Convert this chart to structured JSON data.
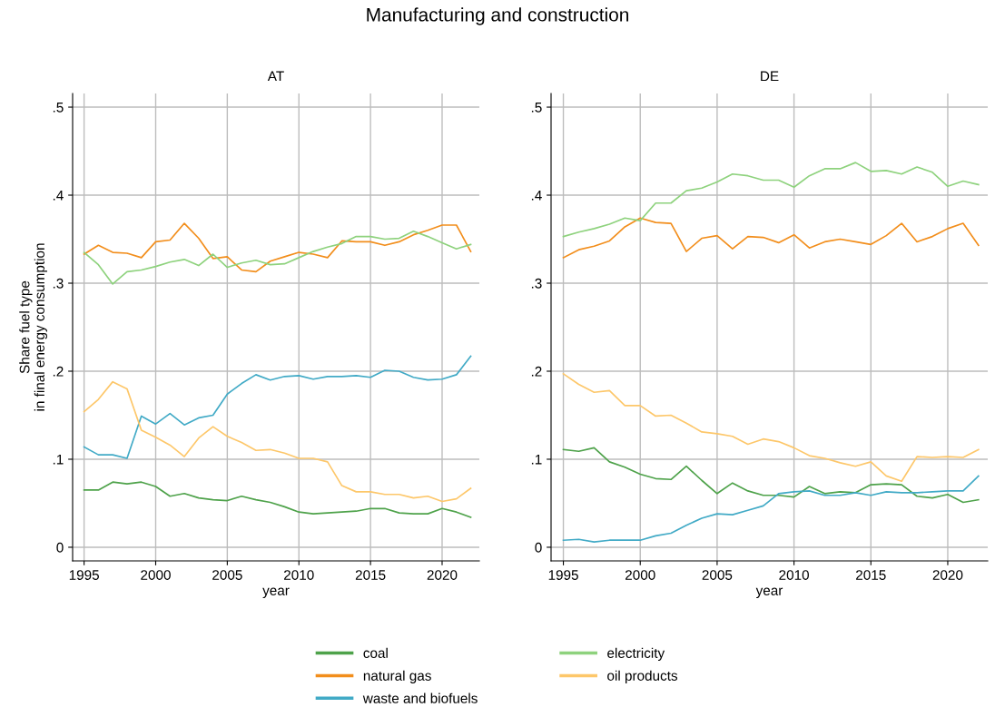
{
  "chart_data": [
    {
      "type": "line",
      "title": "Manufacturing and construction",
      "subtitle": "AT",
      "xlabel": "year",
      "ylabel": "Share fuel type\nin final energy consumption",
      "grid": true,
      "legend": "bottom",
      "x": [
        1995,
        1996,
        1997,
        1998,
        1999,
        2000,
        2001,
        2002,
        2003,
        2004,
        2005,
        2006,
        2007,
        2008,
        2009,
        2010,
        2011,
        2012,
        2013,
        2014,
        2015,
        2016,
        2017,
        2018,
        2019,
        2020,
        2021,
        2022
      ],
      "xlim": [
        1994.2,
        2022.6
      ],
      "xticks": [
        1995,
        2000,
        2005,
        2010,
        2015,
        2020
      ],
      "ylim": [
        -0.0155,
        0.5155
      ],
      "yticks": [
        {
          "value": 0,
          "label": "0"
        },
        {
          "value": 0.1,
          "label": ".1"
        },
        {
          "value": 0.2,
          "label": ".2"
        },
        {
          "value": 0.3,
          "label": ".3"
        },
        {
          "value": 0.4,
          "label": ".4"
        },
        {
          "value": 0.5,
          "label": ".5"
        }
      ],
      "series": [
        {
          "name": "coal",
          "color": "#4ea24a",
          "values": [
            0.065,
            0.065,
            0.074,
            0.072,
            0.074,
            0.069,
            0.058,
            0.061,
            0.056,
            0.054,
            0.053,
            0.058,
            0.054,
            0.051,
            0.046,
            0.04,
            0.038,
            0.039,
            0.04,
            0.041,
            0.044,
            0.044,
            0.039,
            0.038,
            0.038,
            0.044,
            0.04,
            0.034
          ]
        },
        {
          "name": "natural gas",
          "color": "#f28e1c",
          "values": [
            0.333,
            0.343,
            0.335,
            0.334,
            0.329,
            0.347,
            0.349,
            0.368,
            0.351,
            0.328,
            0.33,
            0.315,
            0.313,
            0.325,
            0.33,
            0.335,
            0.333,
            0.329,
            0.348,
            0.347,
            0.347,
            0.343,
            0.347,
            0.355,
            0.36,
            0.366,
            0.366,
            0.336
          ]
        },
        {
          "name": "waste and biofuels",
          "color": "#41aac6",
          "values": [
            0.114,
            0.105,
            0.105,
            0.101,
            0.149,
            0.14,
            0.152,
            0.139,
            0.147,
            0.15,
            0.174,
            0.186,
            0.196,
            0.19,
            0.194,
            0.195,
            0.191,
            0.194,
            0.194,
            0.195,
            0.193,
            0.201,
            0.2,
            0.193,
            0.19,
            0.191,
            0.196,
            0.217
          ]
        },
        {
          "name": "electricity",
          "color": "#8ed27d",
          "values": [
            0.335,
            0.321,
            0.299,
            0.313,
            0.315,
            0.319,
            0.324,
            0.327,
            0.32,
            0.333,
            0.318,
            0.323,
            0.326,
            0.321,
            0.322,
            0.329,
            0.336,
            0.341,
            0.345,
            0.353,
            0.353,
            0.35,
            0.351,
            0.359,
            0.353,
            0.346,
            0.339,
            0.344
          ]
        },
        {
          "name": "oil products",
          "color": "#fdc76a",
          "values": [
            0.154,
            0.168,
            0.188,
            0.18,
            0.133,
            0.125,
            0.116,
            0.103,
            0.124,
            0.137,
            0.126,
            0.119,
            0.11,
            0.111,
            0.107,
            0.101,
            0.101,
            0.097,
            0.07,
            0.063,
            0.063,
            0.06,
            0.06,
            0.056,
            0.058,
            0.052,
            0.055,
            0.067
          ]
        }
      ]
    },
    {
      "type": "line",
      "subtitle": "DE",
      "xlabel": "year",
      "grid": true,
      "legend": "bottom",
      "x": [
        1995,
        1996,
        1997,
        1998,
        1999,
        2000,
        2001,
        2002,
        2003,
        2004,
        2005,
        2006,
        2007,
        2008,
        2009,
        2010,
        2011,
        2012,
        2013,
        2014,
        2015,
        2016,
        2017,
        2018,
        2019,
        2020,
        2021,
        2022
      ],
      "xlim": [
        1994.2,
        2022.6
      ],
      "xticks": [
        1995,
        2000,
        2005,
        2010,
        2015,
        2020
      ],
      "ylim": [
        -0.0155,
        0.5155
      ],
      "yticks": [
        {
          "value": 0,
          "label": "0"
        },
        {
          "value": 0.1,
          "label": ".1"
        },
        {
          "value": 0.2,
          "label": ".2"
        },
        {
          "value": 0.3,
          "label": ".3"
        },
        {
          "value": 0.4,
          "label": ".4"
        },
        {
          "value": 0.5,
          "label": ".5"
        }
      ],
      "series": [
        {
          "name": "coal",
          "color": "#4ea24a",
          "values": [
            0.111,
            0.109,
            0.113,
            0.097,
            0.091,
            0.083,
            0.078,
            0.077,
            0.092,
            0.076,
            0.061,
            0.073,
            0.064,
            0.059,
            0.059,
            0.057,
            0.069,
            0.061,
            0.063,
            0.062,
            0.071,
            0.072,
            0.071,
            0.058,
            0.056,
            0.06,
            0.051,
            0.054
          ]
        },
        {
          "name": "natural gas",
          "color": "#f28e1c",
          "values": [
            0.329,
            0.338,
            0.342,
            0.348,
            0.364,
            0.374,
            0.369,
            0.368,
            0.336,
            0.351,
            0.354,
            0.339,
            0.353,
            0.352,
            0.346,
            0.355,
            0.34,
            0.347,
            0.35,
            0.347,
            0.344,
            0.354,
            0.368,
            0.347,
            0.353,
            0.362,
            0.368,
            0.343
          ]
        },
        {
          "name": "waste and biofuels",
          "color": "#41aac6",
          "values": [
            0.008,
            0.009,
            0.006,
            0.008,
            0.008,
            0.008,
            0.013,
            0.016,
            0.025,
            0.033,
            0.038,
            0.037,
            0.042,
            0.047,
            0.061,
            0.063,
            0.064,
            0.059,
            0.059,
            0.062,
            0.059,
            0.063,
            0.062,
            0.062,
            0.063,
            0.064,
            0.064,
            0.081
          ]
        },
        {
          "name": "electricity",
          "color": "#8ed27d",
          "values": [
            0.353,
            0.358,
            0.362,
            0.367,
            0.374,
            0.371,
            0.391,
            0.391,
            0.405,
            0.408,
            0.415,
            0.424,
            0.422,
            0.417,
            0.417,
            0.409,
            0.422,
            0.43,
            0.43,
            0.437,
            0.427,
            0.428,
            0.424,
            0.432,
            0.426,
            0.41,
            0.416,
            0.412
          ]
        },
        {
          "name": "oil products",
          "color": "#fdc76a",
          "values": [
            0.197,
            0.185,
            0.176,
            0.178,
            0.161,
            0.161,
            0.149,
            0.15,
            0.141,
            0.131,
            0.129,
            0.126,
            0.117,
            0.123,
            0.12,
            0.113,
            0.104,
            0.101,
            0.096,
            0.092,
            0.097,
            0.081,
            0.075,
            0.103,
            0.102,
            0.103,
            0.102,
            0.111
          ]
        }
      ]
    }
  ]
}
